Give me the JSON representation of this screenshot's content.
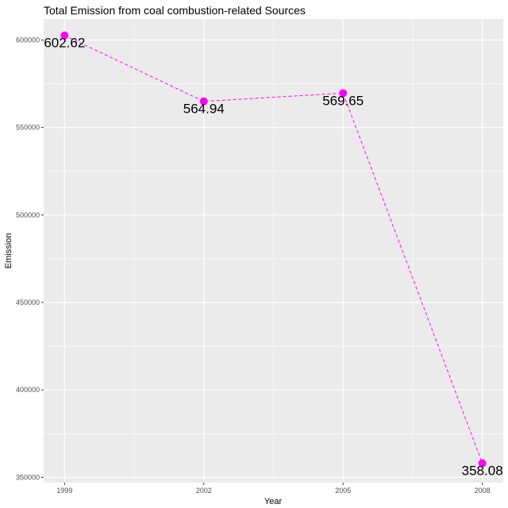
{
  "chart_data": {
    "type": "line",
    "title": "Total Emission from coal combustion-related Sources",
    "xlabel": "Year",
    "ylabel": "Emission",
    "x": [
      1999,
      2002,
      2005,
      2008
    ],
    "y_ticks": [
      350000,
      400000,
      450000,
      500000,
      550000,
      600000
    ],
    "ylim": [
      347000,
      612000
    ],
    "series": [
      {
        "values": [
          602624,
          564940,
          569655,
          358083
        ],
        "data_labels": [
          "602.62",
          "564.94",
          "569.65",
          "358.08"
        ]
      }
    ],
    "line_style": "dashed",
    "grid": true,
    "colors": {
      "series": "#FF00FF",
      "panel": "#EBEBEB",
      "grid": "#FFFFFF"
    }
  }
}
